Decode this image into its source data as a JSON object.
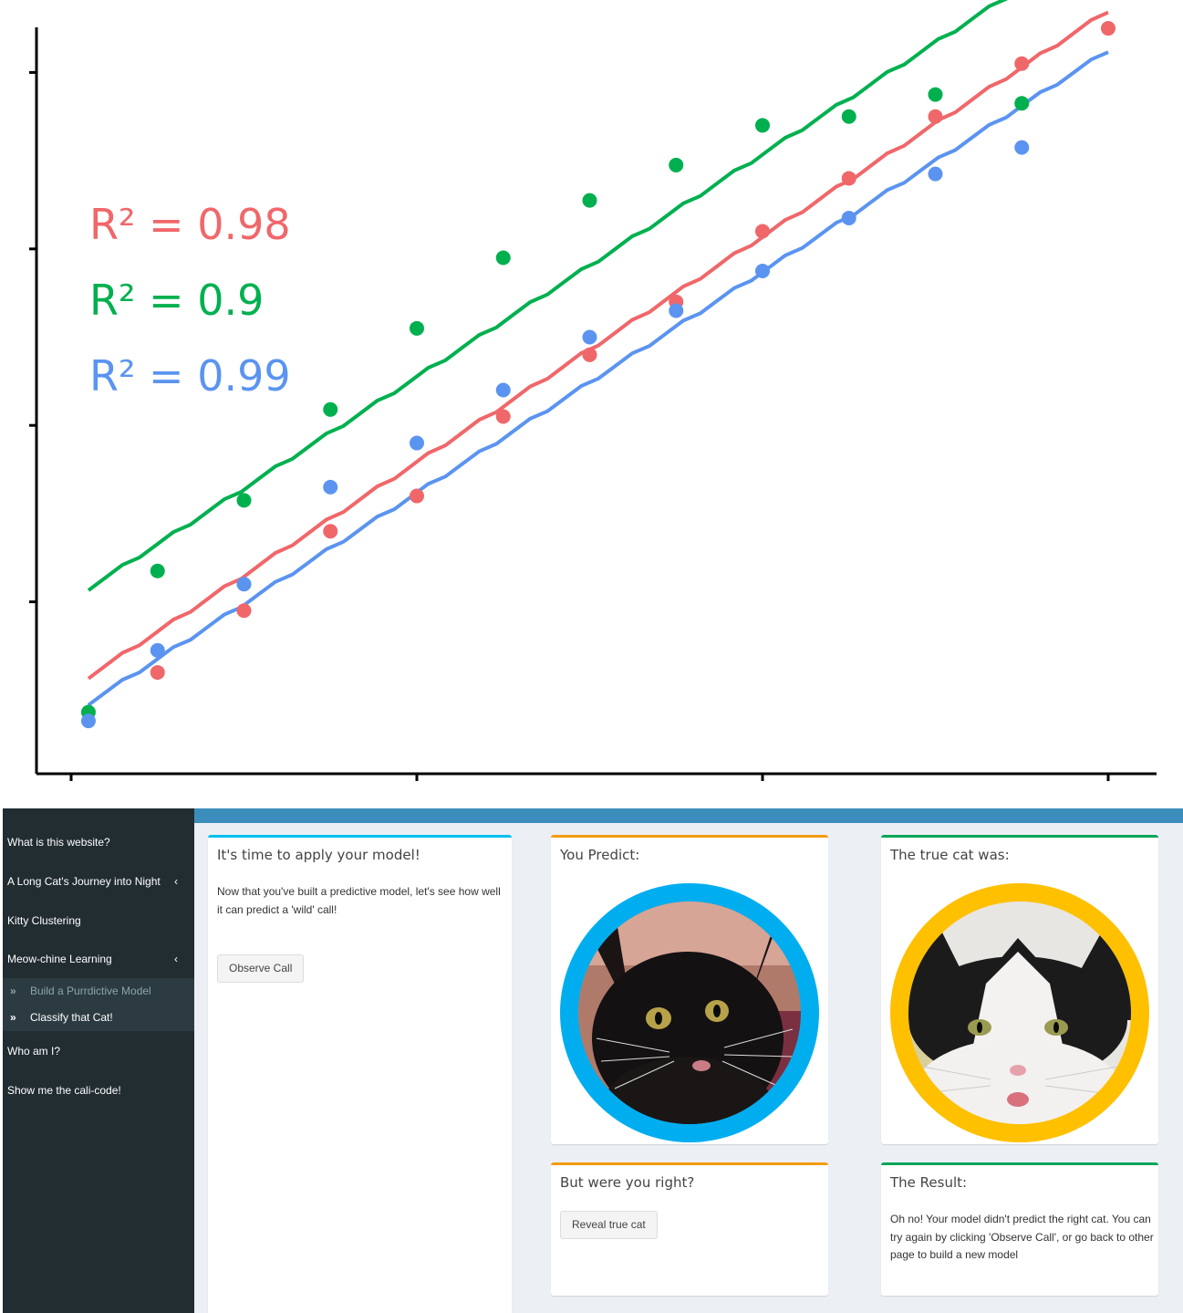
{
  "chart_data": {
    "type": "scatter",
    "title": "",
    "xlabel": "",
    "ylabel": "",
    "xlim": [
      0,
      12.5
    ],
    "ylim": [
      0,
      10.5
    ],
    "x_ticks": [
      0,
      4,
      8,
      12
    ],
    "y_ticks": [
      2,
      4,
      6,
      8
    ],
    "tick_labels_shown": false,
    "annotations": [
      {
        "text": "R² = 0.98",
        "series": "red"
      },
      {
        "text": "R² = 0.9",
        "series": "green"
      },
      {
        "text": "R² = 0.99",
        "series": "blue"
      }
    ],
    "series": [
      {
        "color": "#f0676a",
        "points": [
          [
            1,
            1.2
          ],
          [
            2,
            1.9
          ],
          [
            3,
            2.8
          ],
          [
            4,
            3.2
          ],
          [
            5,
            4.1
          ],
          [
            6,
            4.8
          ],
          [
            7,
            5.4
          ],
          [
            8,
            6.2
          ],
          [
            9,
            6.8
          ],
          [
            10,
            7.5
          ],
          [
            11,
            8.1
          ],
          [
            12,
            8.5
          ]
        ],
        "fit": [
          [
            0.2,
            1.15
          ],
          [
            12,
            8.7
          ]
        ]
      },
      {
        "color": "#00b04f",
        "points": [
          [
            0.2,
            0.75
          ],
          [
            1,
            2.35
          ],
          [
            2,
            3.15
          ],
          [
            3,
            4.18
          ],
          [
            4,
            5.1
          ],
          [
            5,
            5.9
          ],
          [
            6,
            6.55
          ],
          [
            7,
            6.95
          ],
          [
            8,
            7.4
          ],
          [
            9,
            7.5
          ],
          [
            10,
            7.75
          ],
          [
            11,
            7.65
          ]
        ],
        "fit": [
          [
            0.2,
            2.15
          ],
          [
            12,
            9.6
          ]
        ]
      },
      {
        "color": "#5b94f0",
        "points": [
          [
            0.2,
            0.65
          ],
          [
            1,
            1.45
          ],
          [
            2,
            2.2
          ],
          [
            3,
            3.3
          ],
          [
            4,
            3.8
          ],
          [
            5,
            4.4
          ],
          [
            6,
            5.0
          ],
          [
            7,
            5.3
          ],
          [
            8,
            5.75
          ],
          [
            9,
            6.35
          ],
          [
            10,
            6.85
          ],
          [
            11,
            7.15
          ]
        ],
        "fit": [
          [
            0.2,
            0.85
          ],
          [
            12,
            8.25
          ]
        ]
      }
    ]
  },
  "colors": {
    "red": "#f0676a",
    "green": "#00b04f",
    "blue": "#5b94f0",
    "sidebar": "#222d32",
    "header": "#3c8dbc",
    "predict_ring": "#00aef0",
    "true_ring": "#ffc000"
  },
  "sidebar": {
    "items": [
      {
        "label": "What is this website?"
      },
      {
        "label": "A Long Cat's Journey into Night",
        "chevron": "‹"
      },
      {
        "label": "Kitty Clustering"
      },
      {
        "label": "Meow-chine Learning",
        "chevron": "‹"
      },
      {
        "label": "Who am I?"
      },
      {
        "label": "Show me the cali-code!"
      }
    ],
    "subitems": [
      {
        "label": "Build a Purrdictive Model",
        "icon": "»"
      },
      {
        "label": "Classify that Cat!",
        "icon": "»"
      }
    ]
  },
  "apply_box": {
    "title": "It's time to apply your model!",
    "text": "Now that you've built a predictive model, let's see how well it can predict a 'wild' call!",
    "button": "Observe Call"
  },
  "predict_box": {
    "title": "You Predict:",
    "image": "black-cat-photo"
  },
  "true_box": {
    "title": "The true cat was:",
    "image": "tuxedo-cat-photo"
  },
  "right_box": {
    "title": "But were you right?",
    "button": "Reveal true cat"
  },
  "result_box": {
    "title": "The Result:",
    "text": "Oh no! Your model didn't predict the right cat. You can try again by clicking 'Observe Call', or go back to other page to build a new model"
  }
}
